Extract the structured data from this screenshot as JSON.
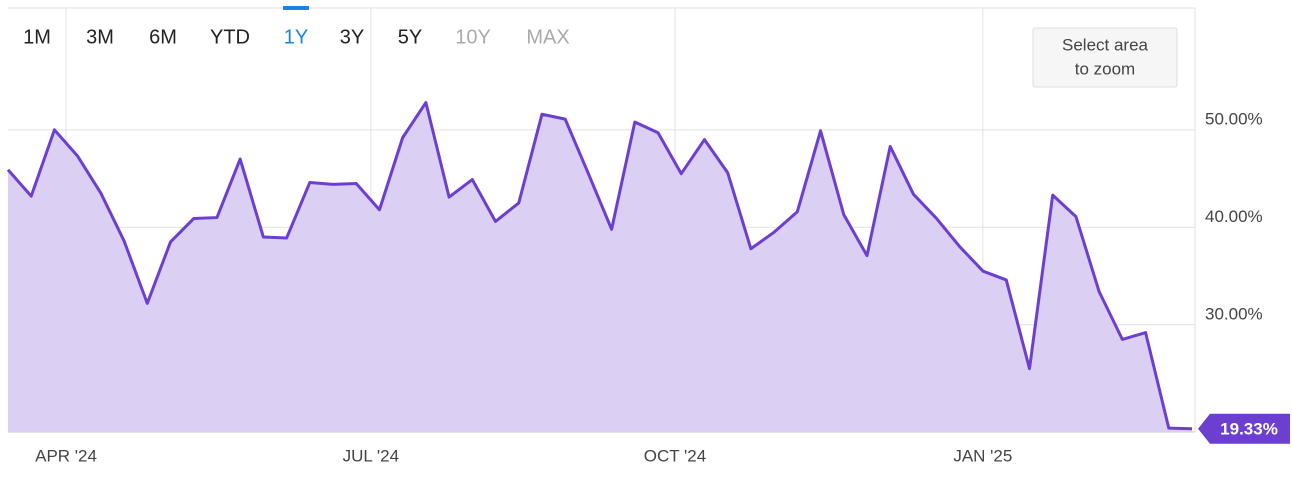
{
  "chart_data": {
    "type": "area",
    "range_buttons": [
      {
        "label": "1M",
        "state": "enabled"
      },
      {
        "label": "3M",
        "state": "enabled"
      },
      {
        "label": "6M",
        "state": "enabled"
      },
      {
        "label": "YTD",
        "state": "enabled"
      },
      {
        "label": "1Y",
        "state": "active"
      },
      {
        "label": "3Y",
        "state": "enabled"
      },
      {
        "label": "5Y",
        "state": "enabled"
      },
      {
        "label": "10Y",
        "state": "disabled"
      },
      {
        "label": "MAX",
        "state": "disabled"
      }
    ],
    "zoom_hint": [
      "Select area",
      "to zoom"
    ],
    "x": [
      0,
      1,
      2,
      3,
      4,
      5,
      6,
      7,
      8,
      9,
      10,
      11,
      12,
      13,
      14,
      15,
      16,
      17,
      18,
      19,
      20,
      21,
      22,
      23,
      24,
      25,
      26,
      27,
      28,
      29,
      30,
      31,
      32,
      33,
      34,
      35,
      36,
      37,
      38,
      39,
      40,
      41,
      42,
      43,
      44,
      45,
      46,
      47,
      48,
      49,
      50,
      51
    ],
    "values": [
      45.9,
      43.2,
      50.0,
      47.3,
      43.5,
      38.6,
      32.2,
      38.5,
      40.9,
      41.0,
      47.0,
      39.0,
      38.9,
      44.6,
      44.4,
      44.5,
      41.8,
      49.2,
      52.8,
      43.1,
      44.9,
      40.6,
      42.5,
      51.6,
      51.1,
      45.5,
      39.8,
      50.8,
      49.7,
      45.5,
      49.0,
      45.6,
      37.8,
      39.5,
      41.6,
      49.9,
      41.3,
      37.1,
      48.3,
      43.4,
      40.9,
      38.0,
      35.5,
      34.6,
      25.5,
      43.3,
      41.1,
      33.4,
      28.5,
      29.2,
      19.4,
      19.33
    ],
    "value_labels": [
      null,
      null,
      null,
      null,
      null,
      null,
      null,
      null,
      null,
      null,
      null,
      null,
      null,
      null,
      null,
      null,
      null,
      null,
      null,
      null,
      null,
      null,
      null,
      null,
      null,
      null,
      null,
      null,
      null,
      null,
      null,
      null,
      null,
      null,
      null,
      null,
      null,
      null,
      null,
      null,
      null,
      null,
      null,
      null,
      null,
      null,
      null,
      null,
      null,
      null,
      null,
      "19.33%"
    ],
    "color": "#6c3fd1",
    "fill_color": "#d9ccf2",
    "xlim": [
      0,
      51
    ],
    "xticks": [
      {
        "value": 2.5,
        "label": "APR '24"
      },
      {
        "value": 15.63,
        "label": "JUL '24"
      },
      {
        "value": 28.73,
        "label": "OCT '24"
      },
      {
        "value": 41.99,
        "label": "JAN '25"
      }
    ],
    "ylim": [
      19,
      62.5
    ],
    "yticks": [
      {
        "value": 30,
        "label": "30.00%"
      },
      {
        "value": 40,
        "label": "40.00%"
      },
      {
        "value": 50,
        "label": "50.00%"
      }
    ],
    "grid": true
  }
}
